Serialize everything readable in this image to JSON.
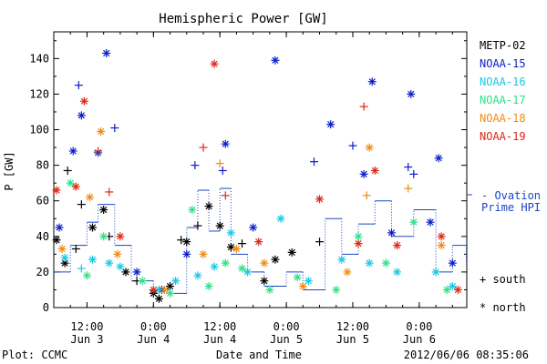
{
  "chart_data": {
    "type": "scatter",
    "title": "Hemispheric Power [GW]",
    "ylabel": "P [GW]",
    "xlabel": "Date and Time",
    "ylim": [
      0,
      155
    ],
    "xlim": [
      "2012-06-03 06:00",
      "2012-06-06 08:35"
    ],
    "yticks": [
      0,
      20,
      40,
      60,
      80,
      100,
      120,
      140
    ],
    "xticks": [
      {
        "t": "2012-06-03 12:00",
        "l1": "12:00",
        "l2": "Jun 3"
      },
      {
        "t": "2012-06-04 00:00",
        "l1": "0:00",
        "l2": "Jun 4"
      },
      {
        "t": "2012-06-04 12:00",
        "l1": "12:00",
        "l2": "Jun 4"
      },
      {
        "t": "2012-06-05 00:00",
        "l1": "0:00",
        "l2": "Jun 5"
      },
      {
        "t": "2012-06-05 12:00",
        "l1": "12:00",
        "l2": "Jun 5"
      },
      {
        "t": "2012-06-06 00:00",
        "l1": "0:00",
        "l2": "Jun 6"
      }
    ],
    "grid": false,
    "legend_position": "right",
    "series": [
      {
        "name": "METP-02",
        "color": "#000000",
        "points": [
          {
            "x": "2012-06-03 06:30",
            "y": 38,
            "m": "*"
          },
          {
            "x": "2012-06-03 08:00",
            "y": 25,
            "m": "*"
          },
          {
            "x": "2012-06-03 08:30",
            "y": 77,
            "m": "+"
          },
          {
            "x": "2012-06-03 10:00",
            "y": 33,
            "m": "+"
          },
          {
            "x": "2012-06-03 11:00",
            "y": 58,
            "m": "+"
          },
          {
            "x": "2012-06-03 13:00",
            "y": 45,
            "m": "*"
          },
          {
            "x": "2012-06-03 15:00",
            "y": 55,
            "m": "*"
          },
          {
            "x": "2012-06-03 16:00",
            "y": 40,
            "m": "+"
          },
          {
            "x": "2012-06-03 19:00",
            "y": 20,
            "m": "*"
          },
          {
            "x": "2012-06-03 21:00",
            "y": 15,
            "m": "+"
          },
          {
            "x": "2012-06-04 00:00",
            "y": 8,
            "m": "*"
          },
          {
            "x": "2012-06-04 01:00",
            "y": 5,
            "m": "*"
          },
          {
            "x": "2012-06-04 03:00",
            "y": 12,
            "m": "*"
          },
          {
            "x": "2012-06-04 05:00",
            "y": 38,
            "m": "+"
          },
          {
            "x": "2012-06-04 06:00",
            "y": 37,
            "m": "*"
          },
          {
            "x": "2012-06-04 08:00",
            "y": 46,
            "m": "+"
          },
          {
            "x": "2012-06-04 10:00",
            "y": 57,
            "m": "*"
          },
          {
            "x": "2012-06-04 12:00",
            "y": 46,
            "m": "*"
          },
          {
            "x": "2012-06-04 14:00",
            "y": 34,
            "m": "*"
          },
          {
            "x": "2012-06-04 16:00",
            "y": 36,
            "m": "+"
          },
          {
            "x": "2012-06-04 20:00",
            "y": 15,
            "m": "*"
          },
          {
            "x": "2012-06-04 22:00",
            "y": 27,
            "m": "*"
          },
          {
            "x": "2012-06-05 01:00",
            "y": 31,
            "m": "*"
          },
          {
            "x": "2012-06-05 06:00",
            "y": 37,
            "m": "+"
          }
        ]
      },
      {
        "name": "NOAA-15",
        "color": "#0a1fc8",
        "points": [
          {
            "x": "2012-06-03 07:00",
            "y": 45,
            "m": "*"
          },
          {
            "x": "2012-06-03 09:30",
            "y": 88,
            "m": "*"
          },
          {
            "x": "2012-06-03 10:30",
            "y": 125,
            "m": "+"
          },
          {
            "x": "2012-06-03 11:00",
            "y": 108,
            "m": "*"
          },
          {
            "x": "2012-06-03 14:00",
            "y": 87,
            "m": "*"
          },
          {
            "x": "2012-06-03 15:30",
            "y": 143,
            "m": "*"
          },
          {
            "x": "2012-06-03 17:00",
            "y": 101,
            "m": "+"
          },
          {
            "x": "2012-06-03 21:00",
            "y": 20,
            "m": "*"
          },
          {
            "x": "2012-06-04 01:30",
            "y": 10,
            "m": "*"
          },
          {
            "x": "2012-06-04 06:00",
            "y": 30,
            "m": "*"
          },
          {
            "x": "2012-06-04 07:30",
            "y": 80,
            "m": "+"
          },
          {
            "x": "2012-06-04 12:30",
            "y": 77,
            "m": "+"
          },
          {
            "x": "2012-06-04 13:00",
            "y": 92,
            "m": "*"
          },
          {
            "x": "2012-06-04 18:00",
            "y": 45,
            "m": "*"
          },
          {
            "x": "2012-06-04 22:00",
            "y": 139,
            "m": "*"
          },
          {
            "x": "2012-06-05 05:00",
            "y": 82,
            "m": "+"
          },
          {
            "x": "2012-06-05 08:00",
            "y": 103,
            "m": "*"
          },
          {
            "x": "2012-06-05 12:00",
            "y": 91,
            "m": "+"
          },
          {
            "x": "2012-06-05 14:00",
            "y": 75,
            "m": "*"
          },
          {
            "x": "2012-06-05 15:30",
            "y": 127,
            "m": "*"
          },
          {
            "x": "2012-06-05 19:00",
            "y": 42,
            "m": "*"
          },
          {
            "x": "2012-06-05 22:00",
            "y": 79,
            "m": "+"
          },
          {
            "x": "2012-06-05 22:30",
            "y": 120,
            "m": "*"
          },
          {
            "x": "2012-06-05 23:00",
            "y": 75,
            "m": "+"
          },
          {
            "x": "2012-06-06 02:00",
            "y": 48,
            "m": "*"
          },
          {
            "x": "2012-06-06 03:30",
            "y": 84,
            "m": "*"
          },
          {
            "x": "2012-06-06 06:00",
            "y": 25,
            "m": "*"
          }
        ]
      },
      {
        "name": "NOAA-16",
        "color": "#19c8e6",
        "points": [
          {
            "x": "2012-06-03 08:00",
            "y": 28,
            "m": "*"
          },
          {
            "x": "2012-06-03 11:00",
            "y": 22,
            "m": "+"
          },
          {
            "x": "2012-06-03 13:00",
            "y": 27,
            "m": "*"
          },
          {
            "x": "2012-06-03 16:00",
            "y": 25,
            "m": "*"
          },
          {
            "x": "2012-06-03 18:00",
            "y": 23,
            "m": "*"
          },
          {
            "x": "2012-06-04 01:00",
            "y": 10,
            "m": "*"
          },
          {
            "x": "2012-06-04 04:00",
            "y": 15,
            "m": "*"
          },
          {
            "x": "2012-06-04 08:00",
            "y": 18,
            "m": "*"
          },
          {
            "x": "2012-06-04 11:00",
            "y": 23,
            "m": "*"
          },
          {
            "x": "2012-06-04 14:00",
            "y": 42,
            "m": "*"
          },
          {
            "x": "2012-06-04 17:00",
            "y": 20,
            "m": "*"
          },
          {
            "x": "2012-06-04 23:00",
            "y": 50,
            "m": "*"
          },
          {
            "x": "2012-06-05 04:00",
            "y": 15,
            "m": "*"
          },
          {
            "x": "2012-06-05 10:00",
            "y": 27,
            "m": "*"
          },
          {
            "x": "2012-06-05 15:00",
            "y": 25,
            "m": "*"
          },
          {
            "x": "2012-06-05 20:00",
            "y": 20,
            "m": "*"
          },
          {
            "x": "2012-06-06 03:00",
            "y": 20,
            "m": "*"
          },
          {
            "x": "2012-06-06 06:00",
            "y": 12,
            "m": "*"
          }
        ]
      },
      {
        "name": "NOAA-17",
        "color": "#2ee08a",
        "points": [
          {
            "x": "2012-06-03 09:00",
            "y": 70,
            "m": "*"
          },
          {
            "x": "2012-06-03 12:00",
            "y": 18,
            "m": "*"
          },
          {
            "x": "2012-06-03 15:00",
            "y": 40,
            "m": "*"
          },
          {
            "x": "2012-06-03 22:00",
            "y": 15,
            "m": "*"
          },
          {
            "x": "2012-06-04 03:00",
            "y": 8,
            "m": "*"
          },
          {
            "x": "2012-06-04 07:00",
            "y": 55,
            "m": "*"
          },
          {
            "x": "2012-06-04 10:00",
            "y": 12,
            "m": "*"
          },
          {
            "x": "2012-06-04 13:00",
            "y": 25,
            "m": "*"
          },
          {
            "x": "2012-06-04 16:00",
            "y": 22,
            "m": "*"
          },
          {
            "x": "2012-06-04 21:00",
            "y": 10,
            "m": "*"
          },
          {
            "x": "2012-06-05 02:00",
            "y": 17,
            "m": "*"
          },
          {
            "x": "2012-06-05 09:00",
            "y": 10,
            "m": "*"
          },
          {
            "x": "2012-06-05 13:00",
            "y": 40,
            "m": "*"
          },
          {
            "x": "2012-06-05 18:00",
            "y": 25,
            "m": "*"
          },
          {
            "x": "2012-06-05 23:00",
            "y": 48,
            "m": "*"
          },
          {
            "x": "2012-06-06 05:00",
            "y": 10,
            "m": "*"
          }
        ]
      },
      {
        "name": "NOAA-18",
        "color": "#f08c14",
        "points": [
          {
            "x": "2012-06-03 07:30",
            "y": 33,
            "m": "*"
          },
          {
            "x": "2012-06-03 12:30",
            "y": 62,
            "m": "*"
          },
          {
            "x": "2012-06-03 14:30",
            "y": 99,
            "m": "*"
          },
          {
            "x": "2012-06-03 17:30",
            "y": 30,
            "m": "*"
          },
          {
            "x": "2012-06-04 02:00",
            "y": 10,
            "m": "*"
          },
          {
            "x": "2012-06-04 09:00",
            "y": 30,
            "m": "*"
          },
          {
            "x": "2012-06-04 12:00",
            "y": 81,
            "m": "+"
          },
          {
            "x": "2012-06-04 15:00",
            "y": 33,
            "m": "*"
          },
          {
            "x": "2012-06-04 20:00",
            "y": 25,
            "m": "*"
          },
          {
            "x": "2012-06-05 03:00",
            "y": 12,
            "m": "*"
          },
          {
            "x": "2012-06-05 11:00",
            "y": 20,
            "m": "*"
          },
          {
            "x": "2012-06-05 14:30",
            "y": 63,
            "m": "+"
          },
          {
            "x": "2012-06-05 15:00",
            "y": 90,
            "m": "*"
          },
          {
            "x": "2012-06-05 22:00",
            "y": 67,
            "m": "+"
          },
          {
            "x": "2012-06-06 04:00",
            "y": 35,
            "m": "*"
          }
        ]
      },
      {
        "name": "NOAA-19",
        "color": "#dc2814",
        "points": [
          {
            "x": "2012-06-03 06:30",
            "y": 66,
            "m": "*"
          },
          {
            "x": "2012-06-03 10:00",
            "y": 68,
            "m": "*"
          },
          {
            "x": "2012-06-03 11:30",
            "y": 116,
            "m": "*"
          },
          {
            "x": "2012-06-03 14:00",
            "y": 88,
            "m": "+"
          },
          {
            "x": "2012-06-03 16:00",
            "y": 65,
            "m": "+"
          },
          {
            "x": "2012-06-03 18:00",
            "y": 40,
            "m": "*"
          },
          {
            "x": "2012-06-04 00:00",
            "y": 10,
            "m": "*"
          },
          {
            "x": "2012-06-04 09:00",
            "y": 90,
            "m": "+"
          },
          {
            "x": "2012-06-04 11:00",
            "y": 137,
            "m": "*"
          },
          {
            "x": "2012-06-04 13:00",
            "y": 63,
            "m": "+"
          },
          {
            "x": "2012-06-04 19:00",
            "y": 37,
            "m": "*"
          },
          {
            "x": "2012-06-05 06:00",
            "y": 61,
            "m": "*"
          },
          {
            "x": "2012-06-05 13:00",
            "y": 36,
            "m": "*"
          },
          {
            "x": "2012-06-05 14:00",
            "y": 113,
            "m": "+"
          },
          {
            "x": "2012-06-05 16:00",
            "y": 77,
            "m": "*"
          },
          {
            "x": "2012-06-05 20:00",
            "y": 35,
            "m": "*"
          },
          {
            "x": "2012-06-06 04:00",
            "y": 40,
            "m": "*"
          },
          {
            "x": "2012-06-06 07:00",
            "y": 10,
            "m": "*"
          }
        ]
      },
      {
        "name": "Ovation Prime HPI",
        "color": "#1a44c8",
        "style": "step-dotted",
        "points": [
          {
            "x": "2012-06-03 06:00",
            "y": 20
          },
          {
            "x": "2012-06-03 09:00",
            "y": 35
          },
          {
            "x": "2012-06-03 12:00",
            "y": 48
          },
          {
            "x": "2012-06-03 14:00",
            "y": 58
          },
          {
            "x": "2012-06-03 17:00",
            "y": 35
          },
          {
            "x": "2012-06-03 20:00",
            "y": 15
          },
          {
            "x": "2012-06-04 00:00",
            "y": 10
          },
          {
            "x": "2012-06-04 03:00",
            "y": 8
          },
          {
            "x": "2012-06-04 06:00",
            "y": 45
          },
          {
            "x": "2012-06-04 08:00",
            "y": 66
          },
          {
            "x": "2012-06-04 10:00",
            "y": 43
          },
          {
            "x": "2012-06-04 12:00",
            "y": 67
          },
          {
            "x": "2012-06-04 14:00",
            "y": 30
          },
          {
            "x": "2012-06-04 17:00",
            "y": 20
          },
          {
            "x": "2012-06-04 20:00",
            "y": 12
          },
          {
            "x": "2012-06-05 00:00",
            "y": 20
          },
          {
            "x": "2012-06-05 03:00",
            "y": 10
          },
          {
            "x": "2012-06-05 07:00",
            "y": 50
          },
          {
            "x": "2012-06-05 10:00",
            "y": 30
          },
          {
            "x": "2012-06-05 13:00",
            "y": 47
          },
          {
            "x": "2012-06-05 16:00",
            "y": 60
          },
          {
            "x": "2012-06-05 19:00",
            "y": 40
          },
          {
            "x": "2012-06-05 23:00",
            "y": 55
          },
          {
            "x": "2012-06-06 03:00",
            "y": 20
          },
          {
            "x": "2012-06-06 06:00",
            "y": 35
          },
          {
            "x": "2012-06-06 08:30",
            "y": 25
          }
        ]
      }
    ],
    "legend": {
      "satellites": [
        "METP-02",
        "NOAA-15",
        "NOAA-16",
        "NOAA-17",
        "NOAA-18",
        "NOAA-19"
      ],
      "ovation_label_1": "- Ovation",
      "ovation_label_2": "Prime HPI",
      "south_label": "+ south",
      "north_label": "* north"
    },
    "footer_left": "Plot: CCMC",
    "footer_center": "Date and Time",
    "footer_right": "2012/06/06 08:35:06"
  }
}
